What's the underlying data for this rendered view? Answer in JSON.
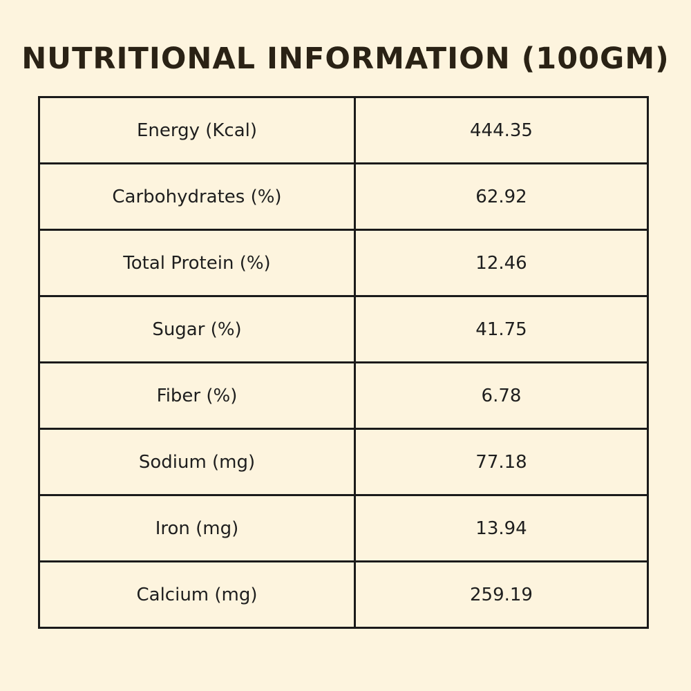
{
  "title": "NUTRITIONAL INFORMATION (100GM)",
  "rows": [
    {
      "label": "Energy (Kcal)",
      "value": "444.35"
    },
    {
      "label": "Carbohydrates (%)",
      "value": "62.92"
    },
    {
      "label": "Total Protein (%)",
      "value": "12.46"
    },
    {
      "label": "Sugar (%)",
      "value": "41.75"
    },
    {
      "label": "Fiber (%)",
      "value": "6.78"
    },
    {
      "label": "Sodium (mg)",
      "value": "77.18"
    },
    {
      "label": "Iron (mg)",
      "value": "13.94"
    },
    {
      "label": "Calcium (mg)",
      "value": "259.19"
    }
  ],
  "colors": {
    "background": "#fdf4de",
    "text": "#2a2215",
    "border": "#1a1a1a"
  }
}
